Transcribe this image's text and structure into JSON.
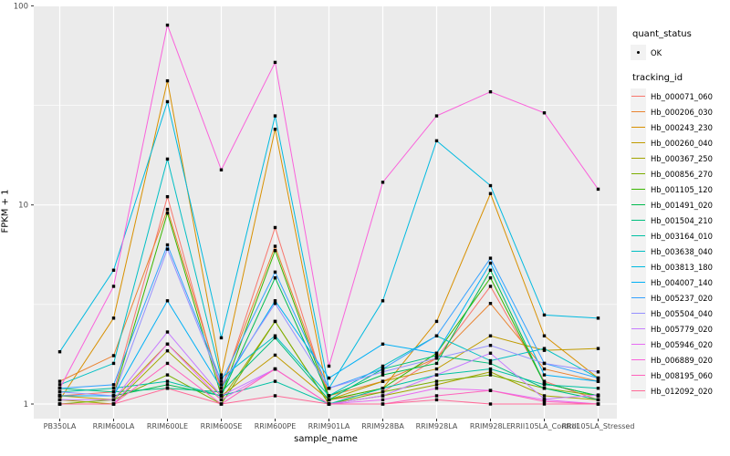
{
  "chart_data": {
    "type": "line",
    "xlabel": "sample_name",
    "ylabel": "FPKM + 1",
    "x_categories": [
      "PB350LA",
      "RRIM600LA",
      "RRIM600LE",
      "RRIM600SE",
      "RRIM600PE",
      "RRIM901LA",
      "RRIM928BA",
      "RRIM928LA",
      "RRIM928LE",
      "RRII105LA_Control",
      "RRII105LA_Stressed"
    ],
    "y_axis": {
      "scale": "log10",
      "ticks": [
        1,
        10,
        100
      ],
      "tick_labels": [
        "1",
        "10",
        "100"
      ],
      "range": [
        1,
        100
      ],
      "minor_ticks": [
        3.1623,
        31.623
      ]
    },
    "panel": {
      "bg": "#EBEBEB",
      "grid": "#FFFFFF",
      "tick_color": "#333333",
      "label_color": "#4D4D4D"
    },
    "point_color": "#000000",
    "legend": {
      "position": "right",
      "quant_status_title": "quant_status",
      "quant_status_items": [
        {
          "label": "OK",
          "marker": "black-point"
        }
      ],
      "tracking_title": "tracking_id"
    },
    "series": [
      {
        "name": "Hb_000071_060",
        "color": "#F8766D",
        "values": [
          1.1,
          1.15,
          11.0,
          1.15,
          7.7,
          1.05,
          1.15,
          1.7,
          3.9,
          1.3,
          1.05
        ]
      },
      {
        "name": "Hb_000206_030",
        "color": "#EA8331",
        "values": [
          1.3,
          1.75,
          9.5,
          1.2,
          6.2,
          1.1,
          1.3,
          1.7,
          3.2,
          1.5,
          1.3
        ]
      },
      {
        "name": "Hb_000243_230",
        "color": "#D89000",
        "values": [
          1.05,
          2.7,
          42.0,
          1.4,
          24.0,
          1.05,
          1.2,
          2.6,
          11.4,
          2.2,
          1.35
        ]
      },
      {
        "name": "Hb_000260_040",
        "color": "#C09B00",
        "values": [
          1.1,
          1.05,
          2.0,
          1.1,
          1.76,
          1.05,
          1.3,
          1.5,
          2.2,
          1.86,
          1.9
        ]
      },
      {
        "name": "Hb_000367_250",
        "color": "#A3A500",
        "values": [
          1.05,
          1.0,
          1.85,
          1.05,
          2.6,
          1.0,
          1.1,
          1.25,
          1.45,
          1.1,
          1.05
        ]
      },
      {
        "name": "Hb_000856_270",
        "color": "#7CAE00",
        "values": [
          1.0,
          1.05,
          1.4,
          1.0,
          2.6,
          1.0,
          1.15,
          1.3,
          1.4,
          1.2,
          1.1
        ]
      },
      {
        "name": "Hb_001105_120",
        "color": "#39B600",
        "values": [
          1.1,
          1.1,
          9.1,
          1.1,
          5.9,
          1.05,
          1.2,
          1.8,
          4.3,
          1.27,
          1.1
        ]
      },
      {
        "name": "Hb_001491_020",
        "color": "#00BB4E",
        "values": [
          1.1,
          1.1,
          1.25,
          1.1,
          4.3,
          1.1,
          1.4,
          1.6,
          4.7,
          1.27,
          1.1
        ]
      },
      {
        "name": "Hb_001504_210",
        "color": "#00BF7D",
        "values": [
          1.2,
          1.15,
          1.2,
          1.15,
          2.15,
          1.05,
          1.5,
          1.75,
          1.6,
          1.2,
          1.05
        ]
      },
      {
        "name": "Hb_003164_010",
        "color": "#00C1A3",
        "values": [
          1.15,
          1.2,
          1.3,
          1.1,
          1.3,
          1.0,
          1.2,
          1.4,
          1.5,
          1.25,
          1.2
        ]
      },
      {
        "name": "Hb_003638_040",
        "color": "#00BFC4",
        "values": [
          1.25,
          1.6,
          17.0,
          1.35,
          2.2,
          1.1,
          1.55,
          2.2,
          1.65,
          1.9,
          1.35
        ]
      },
      {
        "name": "Hb_003813_180",
        "color": "#00BAE0",
        "values": [
          1.83,
          4.7,
          33.0,
          2.15,
          28.0,
          1.2,
          3.3,
          21.0,
          12.5,
          2.8,
          2.7
        ]
      },
      {
        "name": "Hb_004007_140",
        "color": "#00B0F6",
        "values": [
          1.1,
          1.1,
          3.3,
          1.2,
          3.3,
          1.35,
          2.0,
          1.8,
          5.1,
          1.4,
          1.3
        ]
      },
      {
        "name": "Hb_005237_020",
        "color": "#35A2FF",
        "values": [
          1.2,
          1.25,
          6.3,
          1.3,
          4.6,
          1.2,
          1.5,
          2.2,
          5.4,
          1.6,
          1.35
        ]
      },
      {
        "name": "Hb_005504_040",
        "color": "#9590FF",
        "values": [
          1.15,
          1.1,
          6.0,
          1.25,
          3.2,
          1.2,
          1.45,
          1.7,
          1.97,
          1.6,
          1.45
        ]
      },
      {
        "name": "Hb_005779_020",
        "color": "#C77CFF",
        "values": [
          1.05,
          1.05,
          2.3,
          1.1,
          1.5,
          1.0,
          1.1,
          1.4,
          1.8,
          1.06,
          1.11
        ]
      },
      {
        "name": "Hb_005946_020",
        "color": "#E76BF3",
        "values": [
          1.0,
          1.0,
          2.0,
          1.05,
          1.5,
          1.0,
          1.05,
          1.2,
          1.17,
          1.05,
          1.0
        ]
      },
      {
        "name": "Hb_006889_020",
        "color": "#FA62DB",
        "values": [
          1.2,
          3.9,
          80.0,
          15.0,
          52.0,
          1.55,
          13.0,
          28.0,
          37.0,
          29.0,
          12.0
        ]
      },
      {
        "name": "Hb_008195_060",
        "color": "#FF62BC",
        "values": [
          1.0,
          1.0,
          1.6,
          1.0,
          1.5,
          1.0,
          1.0,
          1.1,
          1.17,
          1.03,
          1.0
        ]
      },
      {
        "name": "Hb_012092_020",
        "color": "#FF6A98",
        "values": [
          1.0,
          1.0,
          1.2,
          1.0,
          1.1,
          1.0,
          1.0,
          1.05,
          1.0,
          1.0,
          1.0
        ]
      }
    ]
  }
}
